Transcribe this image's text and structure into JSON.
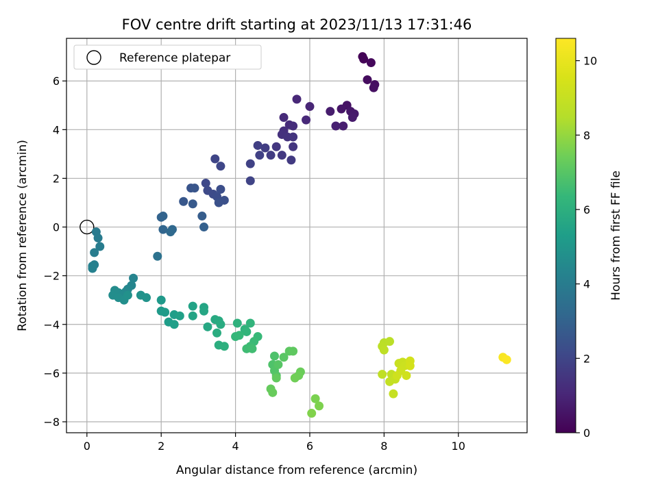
{
  "chart_data": {
    "type": "scatter",
    "title": "FOV centre drift starting at 2023/11/13 17:31:46",
    "xlabel": "Angular distance from reference (arcmin)",
    "ylabel": "Rotation from reference (arcmin)",
    "xlim": [
      -0.55,
      11.85
    ],
    "ylim": [
      -8.45,
      7.75
    ],
    "xticks": [
      0,
      2,
      4,
      6,
      8,
      10
    ],
    "yticks": [
      -8,
      -6,
      -4,
      -2,
      0,
      2,
      4,
      6
    ],
    "grid": true,
    "legend": {
      "position": "top-left",
      "entries": [
        "Reference platepar"
      ]
    },
    "reference_point": {
      "x": 0,
      "y": 0
    },
    "colorbar": {
      "label": "Hours from first FF file",
      "min": 0,
      "max": 10.6,
      "ticks": [
        0,
        2,
        4,
        6,
        8,
        10
      ],
      "colormap": "viridis"
    },
    "points": [
      {
        "x": 7.42,
        "y": 7.0,
        "t": 0.05
      },
      {
        "x": 7.45,
        "y": 6.9,
        "t": 0.1
      },
      {
        "x": 7.65,
        "y": 6.75,
        "t": 0.2
      },
      {
        "x": 7.55,
        "y": 6.05,
        "t": 0.3
      },
      {
        "x": 7.75,
        "y": 5.85,
        "t": 0.35
      },
      {
        "x": 7.72,
        "y": 5.72,
        "t": 0.4
      },
      {
        "x": 7.0,
        "y": 5.0,
        "t": 0.5
      },
      {
        "x": 6.85,
        "y": 4.85,
        "t": 0.55
      },
      {
        "x": 7.1,
        "y": 4.75,
        "t": 0.6
      },
      {
        "x": 7.2,
        "y": 4.65,
        "t": 0.65
      },
      {
        "x": 7.15,
        "y": 4.5,
        "t": 0.7
      },
      {
        "x": 6.55,
        "y": 4.75,
        "t": 0.75
      },
      {
        "x": 6.9,
        "y": 4.15,
        "t": 0.8
      },
      {
        "x": 6.7,
        "y": 4.15,
        "t": 0.85
      },
      {
        "x": 6.0,
        "y": 4.95,
        "t": 1.0
      },
      {
        "x": 5.65,
        "y": 5.25,
        "t": 1.05
      },
      {
        "x": 5.9,
        "y": 4.4,
        "t": 1.1
      },
      {
        "x": 5.3,
        "y": 4.5,
        "t": 1.15
      },
      {
        "x": 5.45,
        "y": 4.2,
        "t": 1.2
      },
      {
        "x": 5.55,
        "y": 4.15,
        "t": 1.25
      },
      {
        "x": 5.3,
        "y": 3.95,
        "t": 1.3
      },
      {
        "x": 5.25,
        "y": 3.8,
        "t": 1.35
      },
      {
        "x": 5.4,
        "y": 3.7,
        "t": 1.4
      },
      {
        "x": 5.55,
        "y": 3.7,
        "t": 1.45
      },
      {
        "x": 5.55,
        "y": 3.3,
        "t": 1.5
      },
      {
        "x": 5.1,
        "y": 3.3,
        "t": 1.55
      },
      {
        "x": 5.25,
        "y": 2.95,
        "t": 1.6
      },
      {
        "x": 5.5,
        "y": 2.75,
        "t": 1.65
      },
      {
        "x": 4.95,
        "y": 2.95,
        "t": 1.7
      },
      {
        "x": 4.8,
        "y": 3.25,
        "t": 1.75
      },
      {
        "x": 4.6,
        "y": 3.35,
        "t": 1.8
      },
      {
        "x": 4.65,
        "y": 2.95,
        "t": 1.85
      },
      {
        "x": 4.4,
        "y": 2.6,
        "t": 1.9
      },
      {
        "x": 4.4,
        "y": 1.9,
        "t": 1.95
      },
      {
        "x": 3.45,
        "y": 2.8,
        "t": 2.0
      },
      {
        "x": 3.6,
        "y": 2.5,
        "t": 2.05
      },
      {
        "x": 3.2,
        "y": 1.8,
        "t": 2.1
      },
      {
        "x": 3.25,
        "y": 1.5,
        "t": 2.15
      },
      {
        "x": 3.4,
        "y": 1.35,
        "t": 2.2
      },
      {
        "x": 3.5,
        "y": 1.25,
        "t": 2.25
      },
      {
        "x": 3.6,
        "y": 1.55,
        "t": 2.3
      },
      {
        "x": 3.7,
        "y": 1.1,
        "t": 2.35
      },
      {
        "x": 3.55,
        "y": 1.0,
        "t": 2.4
      },
      {
        "x": 2.8,
        "y": 1.6,
        "t": 2.5
      },
      {
        "x": 2.9,
        "y": 1.6,
        "t": 2.55
      },
      {
        "x": 2.6,
        "y": 1.05,
        "t": 2.6
      },
      {
        "x": 2.85,
        "y": 0.95,
        "t": 2.7
      },
      {
        "x": 3.1,
        "y": 0.45,
        "t": 2.8
      },
      {
        "x": 3.15,
        "y": 0.0,
        "t": 2.9
      },
      {
        "x": 2.0,
        "y": 0.4,
        "t": 3.0
      },
      {
        "x": 2.05,
        "y": 0.45,
        "t": 3.05
      },
      {
        "x": 2.05,
        "y": -0.1,
        "t": 3.1
      },
      {
        "x": 2.3,
        "y": -0.1,
        "t": 3.2
      },
      {
        "x": 2.25,
        "y": -0.2,
        "t": 3.25
      },
      {
        "x": 1.9,
        "y": -1.2,
        "t": 3.6
      },
      {
        "x": 0.25,
        "y": -0.2,
        "t": 3.9
      },
      {
        "x": 0.3,
        "y": -0.45,
        "t": 3.95
      },
      {
        "x": 0.35,
        "y": -0.8,
        "t": 4.0
      },
      {
        "x": 0.2,
        "y": -1.05,
        "t": 4.05
      },
      {
        "x": 0.2,
        "y": -1.55,
        "t": 4.1
      },
      {
        "x": 0.15,
        "y": -1.6,
        "t": 4.15
      },
      {
        "x": 0.15,
        "y": -1.7,
        "t": 4.2
      },
      {
        "x": 1.25,
        "y": -2.1,
        "t": 4.3
      },
      {
        "x": 1.2,
        "y": -2.4,
        "t": 4.35
      },
      {
        "x": 1.1,
        "y": -2.55,
        "t": 4.4
      },
      {
        "x": 1.05,
        "y": -2.65,
        "t": 4.45
      },
      {
        "x": 0.95,
        "y": -2.75,
        "t": 4.5
      },
      {
        "x": 0.85,
        "y": -2.7,
        "t": 4.55
      },
      {
        "x": 0.75,
        "y": -2.6,
        "t": 4.6
      },
      {
        "x": 0.7,
        "y": -2.8,
        "t": 4.65
      },
      {
        "x": 0.85,
        "y": -2.9,
        "t": 4.7
      },
      {
        "x": 1.0,
        "y": -3.0,
        "t": 4.75
      },
      {
        "x": 1.1,
        "y": -2.8,
        "t": 4.8
      },
      {
        "x": 1.45,
        "y": -2.8,
        "t": 4.85
      },
      {
        "x": 1.6,
        "y": -2.9,
        "t": 4.9
      },
      {
        "x": 2.0,
        "y": -3.0,
        "t": 5.1
      },
      {
        "x": 2.0,
        "y": -3.45,
        "t": 5.15
      },
      {
        "x": 2.1,
        "y": -3.5,
        "t": 5.2
      },
      {
        "x": 2.2,
        "y": -3.9,
        "t": 5.25
      },
      {
        "x": 2.35,
        "y": -3.6,
        "t": 5.3
      },
      {
        "x": 2.35,
        "y": -4.0,
        "t": 5.35
      },
      {
        "x": 2.5,
        "y": -3.65,
        "t": 5.4
      },
      {
        "x": 2.85,
        "y": -3.25,
        "t": 5.5
      },
      {
        "x": 2.85,
        "y": -3.65,
        "t": 5.55
      },
      {
        "x": 3.15,
        "y": -3.3,
        "t": 5.6
      },
      {
        "x": 3.15,
        "y": -3.45,
        "t": 5.65
      },
      {
        "x": 3.25,
        "y": -4.1,
        "t": 5.7
      },
      {
        "x": 3.45,
        "y": -3.8,
        "t": 5.75
      },
      {
        "x": 3.55,
        "y": -3.85,
        "t": 5.8
      },
      {
        "x": 3.6,
        "y": -4.0,
        "t": 5.85
      },
      {
        "x": 3.5,
        "y": -4.35,
        "t": 5.9
      },
      {
        "x": 3.55,
        "y": -4.85,
        "t": 5.95
      },
      {
        "x": 3.7,
        "y": -4.9,
        "t": 6.0
      },
      {
        "x": 4.05,
        "y": -3.95,
        "t": 6.1
      },
      {
        "x": 4.25,
        "y": -4.2,
        "t": 6.15
      },
      {
        "x": 4.4,
        "y": -3.95,
        "t": 6.2
      },
      {
        "x": 4.3,
        "y": -4.3,
        "t": 6.25
      },
      {
        "x": 4.0,
        "y": -4.5,
        "t": 6.3
      },
      {
        "x": 4.1,
        "y": -4.45,
        "t": 6.35
      },
      {
        "x": 4.6,
        "y": -4.5,
        "t": 6.4
      },
      {
        "x": 4.5,
        "y": -4.7,
        "t": 6.45
      },
      {
        "x": 4.4,
        "y": -4.9,
        "t": 6.5
      },
      {
        "x": 4.3,
        "y": -5.0,
        "t": 6.55
      },
      {
        "x": 4.45,
        "y": -5.0,
        "t": 6.6
      },
      {
        "x": 5.05,
        "y": -5.3,
        "t": 6.8
      },
      {
        "x": 5.0,
        "y": -5.65,
        "t": 6.85
      },
      {
        "x": 5.05,
        "y": -5.9,
        "t": 6.9
      },
      {
        "x": 5.1,
        "y": -6.1,
        "t": 6.95
      },
      {
        "x": 5.15,
        "y": -5.65,
        "t": 7.0
      },
      {
        "x": 5.3,
        "y": -5.35,
        "t": 7.05
      },
      {
        "x": 5.45,
        "y": -5.1,
        "t": 7.1
      },
      {
        "x": 5.55,
        "y": -5.1,
        "t": 7.15
      },
      {
        "x": 5.1,
        "y": -6.2,
        "t": 7.2
      },
      {
        "x": 4.95,
        "y": -6.65,
        "t": 7.25
      },
      {
        "x": 5.0,
        "y": -6.8,
        "t": 7.3
      },
      {
        "x": 5.75,
        "y": -5.95,
        "t": 7.35
      },
      {
        "x": 5.7,
        "y": -6.1,
        "t": 7.4
      },
      {
        "x": 5.6,
        "y": -6.2,
        "t": 7.45
      },
      {
        "x": 6.15,
        "y": -7.05,
        "t": 7.6
      },
      {
        "x": 6.25,
        "y": -7.35,
        "t": 7.65
      },
      {
        "x": 6.05,
        "y": -7.65,
        "t": 7.7
      },
      {
        "x": 8.0,
        "y": -4.75,
        "t": 8.6
      },
      {
        "x": 8.15,
        "y": -4.7,
        "t": 8.65
      },
      {
        "x": 7.95,
        "y": -4.9,
        "t": 8.7
      },
      {
        "x": 8.0,
        "y": -5.05,
        "t": 8.75
      },
      {
        "x": 7.95,
        "y": -6.05,
        "t": 8.8
      },
      {
        "x": 8.2,
        "y": -6.05,
        "t": 8.85
      },
      {
        "x": 8.15,
        "y": -6.35,
        "t": 8.9
      },
      {
        "x": 8.3,
        "y": -6.25,
        "t": 8.95
      },
      {
        "x": 8.25,
        "y": -6.85,
        "t": 9.0
      },
      {
        "x": 8.4,
        "y": -5.6,
        "t": 9.05
      },
      {
        "x": 8.5,
        "y": -5.55,
        "t": 9.1
      },
      {
        "x": 8.55,
        "y": -5.7,
        "t": 9.15
      },
      {
        "x": 8.45,
        "y": -5.9,
        "t": 9.2
      },
      {
        "x": 8.35,
        "y": -6.1,
        "t": 9.25
      },
      {
        "x": 8.6,
        "y": -6.1,
        "t": 9.3
      },
      {
        "x": 8.7,
        "y": -5.5,
        "t": 9.35
      },
      {
        "x": 8.7,
        "y": -5.7,
        "t": 9.4
      },
      {
        "x": 11.2,
        "y": -5.35,
        "t": 10.45
      },
      {
        "x": 11.3,
        "y": -5.45,
        "t": 10.55
      }
    ]
  }
}
